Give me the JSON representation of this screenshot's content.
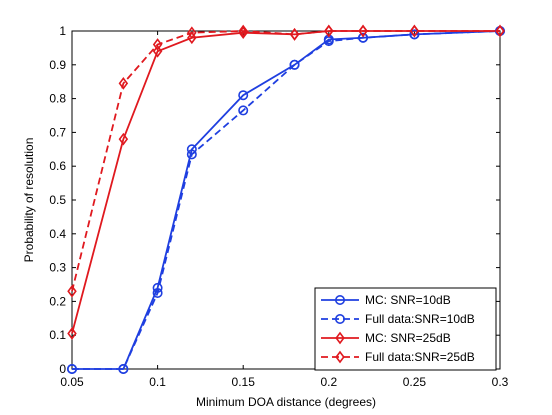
{
  "chart_data": {
    "type": "line",
    "xlabel": "Minimum DOA distance (degrees)",
    "ylabel": "Probability of resolution",
    "xlim": [
      0.05,
      0.3
    ],
    "ylim": [
      0,
      1
    ],
    "xticks": [
      0.05,
      0.1,
      0.15,
      0.2,
      0.25,
      0.3
    ],
    "yticks": [
      0,
      0.1,
      0.2,
      0.3,
      0.4,
      0.5,
      0.6,
      0.7,
      0.8,
      0.9,
      1
    ],
    "xtick_labels": [
      "0.05",
      "0.1",
      "0.15",
      "0.2",
      "0.25",
      "0.3"
    ],
    "ytick_labels": [
      "0",
      "0.1",
      "0.2",
      "0.3",
      "0.4",
      "0.5",
      "0.6",
      "0.7",
      "0.8",
      "0.9",
      "1"
    ],
    "grid": false,
    "legend_position": "bottom-right",
    "series": [
      {
        "name": "MC: SNR=10dB",
        "color": "#1f3fe0",
        "line": "solid",
        "marker": "circle",
        "x": [
          0.05,
          0.08,
          0.1,
          0.12,
          0.15,
          0.18,
          0.2,
          0.22,
          0.25,
          0.3
        ],
        "y": [
          0.0,
          0.0,
          0.24,
          0.65,
          0.81,
          0.9,
          0.975,
          0.98,
          0.99,
          1.0
        ]
      },
      {
        "name": "Full data:SNR=10dB",
        "color": "#1f3fe0",
        "line": "dashed",
        "marker": "circle",
        "x": [
          0.05,
          0.08,
          0.1,
          0.12,
          0.15,
          0.18,
          0.2,
          0.22,
          0.25,
          0.3
        ],
        "y": [
          0.0,
          0.0,
          0.225,
          0.635,
          0.765,
          0.9,
          0.97,
          0.98,
          0.99,
          1.0
        ]
      },
      {
        "name": "MC: SNR=25dB",
        "color": "#e0191f",
        "line": "solid",
        "marker": "diamond",
        "x": [
          0.05,
          0.08,
          0.1,
          0.12,
          0.15,
          0.18,
          0.2,
          0.22,
          0.25,
          0.3
        ],
        "y": [
          0.105,
          0.68,
          0.94,
          0.98,
          0.995,
          0.99,
          1.0,
          1.0,
          1.0,
          1.0
        ]
      },
      {
        "name": "Full data:SNR=25dB",
        "color": "#e0191f",
        "line": "dashed",
        "marker": "diamond",
        "x": [
          0.05,
          0.08,
          0.1,
          0.12,
          0.15,
          0.18,
          0.2,
          0.22,
          0.25,
          0.3
        ],
        "y": [
          0.23,
          0.845,
          0.96,
          0.995,
          1.0,
          0.99,
          1.0,
          1.0,
          1.0,
          1.0
        ]
      }
    ]
  }
}
